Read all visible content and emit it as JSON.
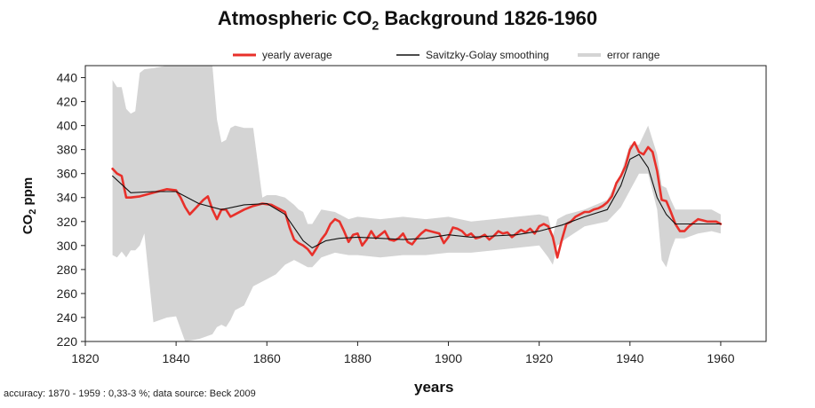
{
  "chart_data": {
    "type": "line",
    "title": {
      "prefix": "Atmospheric CO",
      "subscript": "2",
      "suffix": " Background 1826-1960"
    },
    "xlabel": "years",
    "ylabel": {
      "prefix": "CO",
      "subscript": "2",
      "suffix": " ppm"
    },
    "xlim": [
      1820,
      1970
    ],
    "ylim": [
      220,
      450
    ],
    "xticks": [
      1820,
      1840,
      1860,
      1880,
      1900,
      1920,
      1940,
      1960
    ],
    "yticks": [
      220,
      240,
      260,
      280,
      300,
      320,
      340,
      360,
      380,
      400,
      420,
      440
    ],
    "grid": false,
    "legend": {
      "position": "top",
      "entries": [
        {
          "label": "yearly average",
          "color": "#e8302a"
        },
        {
          "label": "Savitzky-Golay smoothing",
          "color": "#111111"
        },
        {
          "label": "error range",
          "color": "#d4d4d4"
        }
      ]
    },
    "series": [
      {
        "name": "yearly average",
        "color": "#e8302a",
        "x": [
          1826,
          1827,
          1828,
          1829,
          1830,
          1832,
          1835,
          1838,
          1840,
          1841,
          1842,
          1843,
          1844,
          1845,
          1846,
          1847,
          1848,
          1849,
          1850,
          1851,
          1852,
          1853,
          1855,
          1857,
          1859,
          1861,
          1862,
          1863,
          1864,
          1865,
          1866,
          1867,
          1868,
          1869,
          1870,
          1871,
          1872,
          1873,
          1874,
          1875,
          1876,
          1877,
          1878,
          1879,
          1880,
          1881,
          1882,
          1883,
          1884,
          1885,
          1886,
          1887,
          1888,
          1889,
          1890,
          1891,
          1892,
          1893,
          1894,
          1895,
          1896,
          1897,
          1898,
          1899,
          1900,
          1901,
          1902,
          1903,
          1904,
          1905,
          1906,
          1907,
          1908,
          1909,
          1910,
          1911,
          1912,
          1913,
          1914,
          1915,
          1916,
          1917,
          1918,
          1919,
          1920,
          1921,
          1922,
          1923,
          1924,
          1925,
          1926,
          1927,
          1928,
          1929,
          1930,
          1931,
          1932,
          1933,
          1934,
          1935,
          1936,
          1937,
          1938,
          1939,
          1940,
          1941,
          1942,
          1943,
          1944,
          1945,
          1946,
          1947,
          1948,
          1949,
          1950,
          1951,
          1952,
          1953,
          1954,
          1955,
          1956,
          1957,
          1958,
          1959,
          1960
        ],
        "y": [
          364,
          360,
          358,
          340,
          340,
          341,
          344,
          347,
          346,
          340,
          332,
          326,
          330,
          334,
          338,
          341,
          330,
          322,
          330,
          330,
          324,
          326,
          330,
          333,
          335,
          334,
          332,
          330,
          328,
          315,
          305,
          302,
          300,
          297,
          292,
          298,
          305,
          310,
          318,
          322,
          320,
          312,
          303,
          309,
          310,
          300,
          305,
          312,
          306,
          309,
          312,
          305,
          304,
          306,
          310,
          303,
          301,
          306,
          310,
          313,
          312,
          311,
          310,
          302,
          307,
          315,
          314,
          312,
          308,
          310,
          306,
          307,
          309,
          305,
          308,
          312,
          310,
          311,
          307,
          310,
          313,
          311,
          314,
          310,
          316,
          318,
          316,
          307,
          290,
          305,
          318,
          320,
          324,
          326,
          328,
          328,
          330,
          331,
          333,
          336,
          341,
          352,
          358,
          366,
          380,
          386,
          378,
          376,
          382,
          378,
          362,
          338,
          337,
          328,
          318,
          312,
          312,
          316,
          319,
          322,
          321,
          320,
          320,
          320,
          318
        ]
      },
      {
        "name": "Savitzky-Golay smoothing",
        "color": "#111111",
        "x": [
          1826,
          1830,
          1835,
          1840,
          1845,
          1850,
          1855,
          1860,
          1864,
          1868,
          1870,
          1873,
          1876,
          1880,
          1885,
          1890,
          1895,
          1900,
          1905,
          1910,
          1915,
          1920,
          1925,
          1930,
          1935,
          1938,
          1940,
          1942,
          1944,
          1946,
          1948,
          1950,
          1955,
          1960
        ],
        "y": [
          358,
          344,
          345,
          345,
          335,
          330,
          334,
          335,
          326,
          304,
          298,
          304,
          306,
          307,
          306,
          305,
          306,
          309,
          307,
          308,
          309,
          312,
          317,
          324,
          330,
          350,
          372,
          376,
          365,
          340,
          326,
          318,
          318,
          318
        ]
      }
    ],
    "error_range": {
      "name": "error range",
      "color": "#d4d4d4",
      "x": [
        1826,
        1827,
        1828,
        1829,
        1830,
        1831,
        1832,
        1833,
        1835,
        1838,
        1840,
        1842,
        1845,
        1848,
        1849,
        1850,
        1851,
        1852,
        1853,
        1855,
        1857,
        1859,
        1860,
        1862,
        1864,
        1866,
        1867,
        1868,
        1869,
        1870,
        1872,
        1875,
        1878,
        1880,
        1885,
        1890,
        1895,
        1900,
        1905,
        1910,
        1915,
        1920,
        1922,
        1923,
        1924,
        1926,
        1930,
        1935,
        1938,
        1940,
        1942,
        1944,
        1946,
        1947,
        1948,
        1949,
        1950,
        1952,
        1955,
        1958,
        1960
      ],
      "upper": [
        438,
        432,
        432,
        414,
        410,
        412,
        444,
        447,
        448,
        450,
        450,
        450,
        450,
        450,
        405,
        386,
        388,
        398,
        400,
        398,
        398,
        340,
        342,
        342,
        340,
        334,
        330,
        328,
        318,
        318,
        330,
        328,
        322,
        324,
        322,
        324,
        322,
        324,
        320,
        322,
        324,
        326,
        324,
        308,
        322,
        326,
        330,
        338,
        360,
        384,
        384,
        400,
        376,
        350,
        348,
        338,
        330,
        330,
        330,
        330,
        326
      ],
      "lower": [
        292,
        290,
        295,
        290,
        296,
        296,
        300,
        310,
        236,
        240,
        241,
        216,
        222,
        226,
        232,
        234,
        232,
        238,
        246,
        250,
        266,
        270,
        272,
        276,
        284,
        288,
        286,
        284,
        282,
        282,
        290,
        294,
        292,
        292,
        290,
        292,
        292,
        294,
        294,
        296,
        298,
        300,
        290,
        284,
        300,
        306,
        316,
        320,
        332,
        346,
        360,
        360,
        330,
        288,
        282,
        296,
        306,
        306,
        310,
        312,
        310
      ]
    },
    "annotations": [
      "accuracy: 1870 - 1959 : 0,33-3 %; data source:  Beck 2009"
    ]
  }
}
